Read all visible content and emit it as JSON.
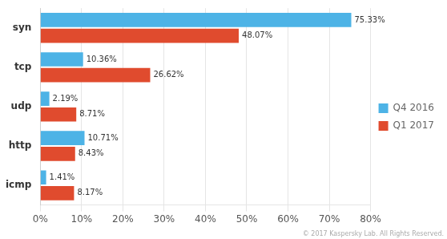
{
  "chart_data": {
    "type": "bar",
    "orientation": "horizontal",
    "categories": [
      "syn",
      "tcp",
      "udp",
      "http",
      "icmp"
    ],
    "series": [
      {
        "name": "Q4 2016",
        "color": "#4db3e6",
        "values": [
          75.33,
          10.36,
          2.19,
          10.71,
          1.41
        ],
        "value_labels": [
          "75.33%",
          "10.36%",
          "2.19%",
          "10.71%",
          "1.41%"
        ]
      },
      {
        "name": "Q1 2017",
        "color": "#e04b2e",
        "values": [
          48.07,
          26.62,
          8.71,
          8.43,
          8.17
        ],
        "value_labels": [
          "48.07%",
          "26.62%",
          "8.71%",
          "8.43%",
          "8.17%"
        ]
      }
    ],
    "xlim": [
      0,
      80
    ],
    "xticks": [
      {
        "value": 0,
        "label": "0%"
      },
      {
        "value": 10,
        "label": "10%"
      },
      {
        "value": 20,
        "label": "20%"
      },
      {
        "value": 30,
        "label": "30%"
      },
      {
        "value": 40,
        "label": "40%"
      },
      {
        "value": 50,
        "label": "50%"
      },
      {
        "value": 60,
        "label": "60%"
      },
      {
        "value": 70,
        "label": "70%"
      },
      {
        "value": 80,
        "label": "80%"
      }
    ],
    "grid": true,
    "legend": "right",
    "data_labels": true,
    "annotations": [
      "© 2017 Kaspersky Lab. All Rights Reserved."
    ]
  }
}
